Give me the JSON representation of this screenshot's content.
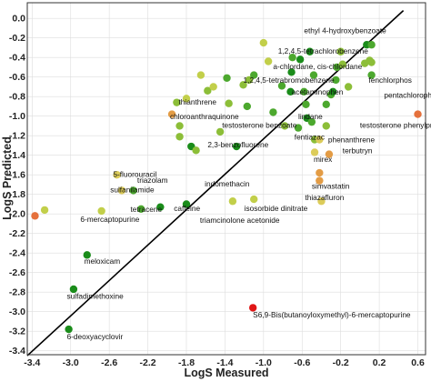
{
  "chart_data": {
    "type": "scatter",
    "xlabel": "LogS Measured",
    "ylabel": "LogS Predicted",
    "xlim": [
      -3.45,
      0.68
    ],
    "ylim": [
      -3.44,
      0.16
    ],
    "x_ticks": [
      -3.4,
      -3.0,
      -2.6,
      -2.2,
      -1.8,
      -1.4,
      -1.0,
      -0.6,
      -0.2,
      0.2,
      0.6
    ],
    "x_tick_labels": [
      "-3.4",
      "-3.0",
      "-2.6",
      "-2.2",
      "-1.8",
      "-1.4",
      "-1.0",
      "-0.6",
      "-0.2",
      "0.2",
      "0.6"
    ],
    "y_ticks": [
      0.0,
      -0.2,
      -0.4,
      -0.6,
      -0.8,
      -1.0,
      -1.2,
      -1.4,
      -1.6,
      -1.8,
      -2.0,
      -2.2,
      -2.4,
      -2.6,
      -2.8,
      -3.0,
      -3.2,
      -3.4
    ],
    "y_tick_labels": [
      "0.0",
      "-0.2",
      "-0.4",
      "-0.6",
      "-0.8",
      "-1.0",
      "-1.2",
      "-1.4",
      "-1.6",
      "-1.8",
      "-2.0",
      "-2.2",
      "-2.4",
      "-2.6",
      "-2.8",
      "-3.0",
      "-3.2",
      "-3.4"
    ],
    "grid": true,
    "reference_line": {
      "x": [
        -3.45,
        0.45
      ],
      "y": [
        -3.45,
        0.08
      ]
    },
    "colors": {
      "dark_green": "#1a8c1a",
      "green": "#4ca82e",
      "light_green": "#8cbe38",
      "yellow_green": "#c2cf4a",
      "yellow": "#dccc5a",
      "orange": "#e39c45",
      "dark_orange": "#e5713c",
      "red": "#e01616"
    },
    "points": [
      {
        "x": -3.37,
        "y": -2.02,
        "color": "dark_orange"
      },
      {
        "x": -3.27,
        "y": -1.96,
        "color": "yellow_green"
      },
      {
        "x": -3.02,
        "y": -3.18,
        "color": "dark_green"
      },
      {
        "x": -2.97,
        "y": -2.77,
        "color": "dark_green"
      },
      {
        "x": -2.83,
        "y": -2.42,
        "color": "dark_green"
      },
      {
        "x": -2.68,
        "y": -1.97,
        "color": "yellow_green"
      },
      {
        "x": -2.52,
        "y": -1.6,
        "color": "yellow"
      },
      {
        "x": -2.47,
        "y": -1.76,
        "color": "yellow"
      },
      {
        "x": -2.35,
        "y": -1.76,
        "color": "green"
      },
      {
        "x": -2.27,
        "y": -1.95,
        "color": "green"
      },
      {
        "x": -2.07,
        "y": -1.93,
        "color": "dark_green"
      },
      {
        "x": -1.95,
        "y": -0.98,
        "color": "orange"
      },
      {
        "x": -1.9,
        "y": -0.86,
        "color": "light_green"
      },
      {
        "x": -1.87,
        "y": -1.1,
        "color": "light_green"
      },
      {
        "x": -1.87,
        "y": -1.21,
        "color": "light_green"
      },
      {
        "x": -1.8,
        "y": -1.9,
        "color": "dark_green"
      },
      {
        "x": -1.75,
        "y": -1.31,
        "color": "dark_green"
      },
      {
        "x": -1.8,
        "y": -0.82,
        "color": "yellow_green"
      },
      {
        "x": -1.7,
        "y": -1.35,
        "color": "light_green"
      },
      {
        "x": -1.65,
        "y": -0.58,
        "color": "yellow_green"
      },
      {
        "x": -1.58,
        "y": -0.74,
        "color": "light_green"
      },
      {
        "x": -1.52,
        "y": -0.7,
        "color": "yellow_green"
      },
      {
        "x": -1.45,
        "y": -1.16,
        "color": "light_green"
      },
      {
        "x": -1.38,
        "y": -0.61,
        "color": "green"
      },
      {
        "x": -1.36,
        "y": -0.87,
        "color": "light_green"
      },
      {
        "x": -1.32,
        "y": -1.87,
        "color": "yellow_green"
      },
      {
        "x": -1.28,
        "y": -1.31,
        "color": "dark_green"
      },
      {
        "x": -1.21,
        "y": -0.68,
        "color": "light_green"
      },
      {
        "x": -1.17,
        "y": -0.9,
        "color": "green"
      },
      {
        "x": -1.15,
        "y": -0.63,
        "color": "light_green"
      },
      {
        "x": -1.1,
        "y": -0.58,
        "color": "green"
      },
      {
        "x": -1.11,
        "y": -2.96,
        "color": "red"
      },
      {
        "x": -1.1,
        "y": -1.85,
        "color": "yellow_green"
      },
      {
        "x": -1.0,
        "y": -0.25,
        "color": "yellow_green"
      },
      {
        "x": -0.95,
        "y": -0.44,
        "color": "yellow_green"
      },
      {
        "x": -0.9,
        "y": -0.96,
        "color": "green"
      },
      {
        "x": -0.81,
        "y": -0.69,
        "color": "green"
      },
      {
        "x": -0.78,
        "y": -1.1,
        "color": "light_green"
      },
      {
        "x": -0.72,
        "y": -0.75,
        "color": "dark_green"
      },
      {
        "x": -0.71,
        "y": -0.55,
        "color": "dark_green"
      },
      {
        "x": -0.7,
        "y": -0.4,
        "color": "green"
      },
      {
        "x": -0.64,
        "y": -1.12,
        "color": "green"
      },
      {
        "x": -0.62,
        "y": -0.42,
        "color": "dark_green"
      },
      {
        "x": -0.58,
        "y": -0.75,
        "color": "green"
      },
      {
        "x": -0.56,
        "y": -0.88,
        "color": "green"
      },
      {
        "x": -0.55,
        "y": -1.02,
        "color": "dark_green"
      },
      {
        "x": -0.52,
        "y": -0.34,
        "color": "dark_green"
      },
      {
        "x": -0.5,
        "y": -1.06,
        "color": "green"
      },
      {
        "x": -0.48,
        "y": -0.58,
        "color": "green"
      },
      {
        "x": -0.47,
        "y": -1.24,
        "color": "light_green"
      },
      {
        "x": -0.47,
        "y": -1.37,
        "color": "yellow"
      },
      {
        "x": -0.42,
        "y": -1.24,
        "color": "yellow"
      },
      {
        "x": -0.42,
        "y": -1.58,
        "color": "orange"
      },
      {
        "x": -0.42,
        "y": -1.66,
        "color": "orange"
      },
      {
        "x": -0.4,
        "y": -1.87,
        "color": "yellow"
      },
      {
        "x": -0.35,
        "y": -0.88,
        "color": "green"
      },
      {
        "x": -0.35,
        "y": -1.1,
        "color": "light_green"
      },
      {
        "x": -0.32,
        "y": -1.39,
        "color": "orange"
      },
      {
        "x": -0.3,
        "y": -0.78,
        "color": "green"
      },
      {
        "x": -0.28,
        "y": -0.75,
        "color": "dark_green"
      },
      {
        "x": -0.25,
        "y": -0.63,
        "color": "green"
      },
      {
        "x": -0.24,
        "y": -0.5,
        "color": "green"
      },
      {
        "x": -0.2,
        "y": -0.34,
        "color": "light_green"
      },
      {
        "x": -0.18,
        "y": -0.47,
        "color": "light_green"
      },
      {
        "x": -0.12,
        "y": -0.7,
        "color": "light_green"
      },
      {
        "x": 0.05,
        "y": -0.46,
        "color": "light_green"
      },
      {
        "x": 0.07,
        "y": -0.27,
        "color": "dark_green"
      },
      {
        "x": 0.1,
        "y": -0.43,
        "color": "light_green"
      },
      {
        "x": 0.12,
        "y": -0.27,
        "color": "green"
      },
      {
        "x": 0.12,
        "y": -0.45,
        "color": "light_green"
      },
      {
        "x": 0.12,
        "y": -0.58,
        "color": "green"
      },
      {
        "x": 0.6,
        "y": -0.98,
        "color": "dark_orange"
      }
    ],
    "annotations": [
      {
        "text": "ethyl 4-hydroxybenzoate",
        "x": -0.58,
        "y": -0.15
      },
      {
        "text": "1,2,4,5-tetrachlorobenzene",
        "x": -0.85,
        "y": -0.36
      },
      {
        "text": "a-chlordane, cis-chlordane",
        "x": -0.9,
        "y": -0.52
      },
      {
        "text": "1,2,4,5-tetrabromobenzene",
        "x": -1.21,
        "y": -0.66
      },
      {
        "text": "acetaminophen",
        "x": -0.71,
        "y": -0.78
      },
      {
        "text": "fenchlorphos",
        "x": 0.09,
        "y": -0.66
      },
      {
        "text": "pentachlorophenol",
        "x": 0.25,
        "y": -0.81
      },
      {
        "text": "thianthrene",
        "x": -1.88,
        "y": -0.88
      },
      {
        "text": "chloroanthraquinone",
        "x": -1.97,
        "y": -1.03
      },
      {
        "text": "lindane",
        "x": -0.64,
        "y": -1.03
      },
      {
        "text": "testosterone benzoate",
        "x": -1.43,
        "y": -1.12
      },
      {
        "text": "testosterone phenylpropionate",
        "x": 0.0,
        "y": -1.12
      },
      {
        "text": "fentiazac",
        "x": -0.68,
        "y": -1.24
      },
      {
        "text": "phenanthrene",
        "x": -0.33,
        "y": -1.27
      },
      {
        "text": "2,3-benzofluorene",
        "x": -1.58,
        "y": -1.32
      },
      {
        "text": "terbutryn",
        "x": -0.18,
        "y": -1.38
      },
      {
        "text": "5-fluorouracil",
        "x": -2.56,
        "y": -1.62
      },
      {
        "text": "mirex",
        "x": -0.48,
        "y": -1.47
      },
      {
        "text": "triazolam",
        "x": -2.31,
        "y": -1.68
      },
      {
        "text": "indomethacin",
        "x": -1.61,
        "y": -1.72
      },
      {
        "text": "simvastatin",
        "x": -0.5,
        "y": -1.74
      },
      {
        "text": "sulfanilamide",
        "x": -2.59,
        "y": -1.78
      },
      {
        "text": "thiazafluron",
        "x": -0.57,
        "y": -1.86
      },
      {
        "text": "tetracene",
        "x": -2.38,
        "y": -1.98
      },
      {
        "text": "caffeine",
        "x": -1.93,
        "y": -1.97
      },
      {
        "text": "isosorbide dinitrate",
        "x": -1.2,
        "y": -1.97
      },
      {
        "text": "6-mercaptopurine",
        "x": -2.9,
        "y": -2.08
      },
      {
        "text": "triamcinolone acetonide",
        "x": -1.66,
        "y": -2.09
      },
      {
        "text": "meloxicam",
        "x": -2.86,
        "y": -2.51
      },
      {
        "text": "sulfadimethoxine",
        "x": -3.04,
        "y": -2.87
      },
      {
        "text": "S6,9-Bis(butanoyloxymethyl)-6-mercaptopurine",
        "x": -1.11,
        "y": -3.06
      },
      {
        "text": "6-deoxyacyclovir",
        "x": -3.04,
        "y": -3.28
      }
    ]
  }
}
